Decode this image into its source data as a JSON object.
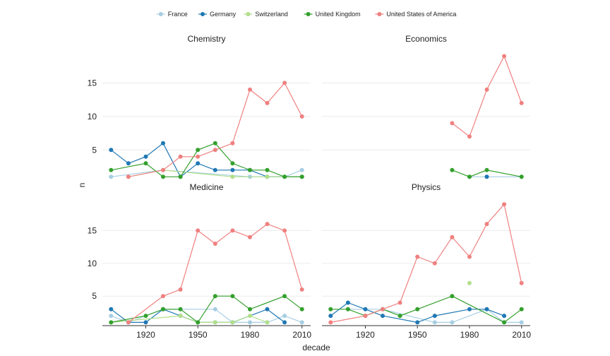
{
  "chart_data": {
    "type": "line",
    "xlabel": "decade",
    "ylabel": "n",
    "x_ticks": [
      1920,
      1950,
      1980,
      2010
    ],
    "y_ticks": [
      5,
      10,
      15
    ],
    "xlim": [
      1895,
      2015
    ],
    "ylim": [
      0,
      20
    ],
    "grid": "horizontal",
    "legend": "top-center",
    "legend_entries": [
      {
        "name": "France",
        "color": "#a6cee3"
      },
      {
        "name": "Germany",
        "color": "#1f78b4"
      },
      {
        "name": "Switzerland",
        "color": "#b2df8a"
      },
      {
        "name": "United Kingdom",
        "color": "#33a02c"
      },
      {
        "name": "United States of America",
        "color": "#f08080"
      }
    ],
    "facets": [
      {
        "title": "Chemistry",
        "series": [
          {
            "name": "France",
            "points": [
              [
                1900,
                1
              ],
              [
                1930,
                2
              ],
              [
                1980,
                1
              ],
              [
                1990,
                1
              ],
              [
                2000,
                1
              ],
              [
                2010,
                2
              ]
            ]
          },
          {
            "name": "Germany",
            "points": [
              [
                1900,
                5
              ],
              [
                1910,
                3
              ],
              [
                1920,
                4
              ],
              [
                1930,
                6
              ],
              [
                1940,
                1
              ],
              [
                1950,
                3
              ],
              [
                1960,
                2
              ],
              [
                1970,
                2
              ],
              [
                1980,
                2
              ],
              [
                1990,
                1
              ],
              [
                2000,
                1
              ],
              [
                2010,
                1
              ]
            ]
          },
          {
            "name": "Switzerland",
            "points": [
              [
                1910,
                1
              ],
              [
                1930,
                2
              ],
              [
                1970,
                1
              ],
              [
                1990,
                1
              ],
              [
                2000,
                1
              ],
              [
                2010,
                1
              ]
            ]
          },
          {
            "name": "United Kingdom",
            "points": [
              [
                1900,
                2
              ],
              [
                1920,
                3
              ],
              [
                1930,
                1
              ],
              [
                1940,
                1
              ],
              [
                1950,
                5
              ],
              [
                1960,
                6
              ],
              [
                1970,
                3
              ],
              [
                1980,
                2
              ],
              [
                1990,
                2
              ],
              [
                2000,
                1
              ],
              [
                2010,
                1
              ]
            ]
          },
          {
            "name": "United States of America",
            "points": [
              [
                1910,
                1
              ],
              [
                1930,
                2
              ],
              [
                1940,
                4
              ],
              [
                1950,
                4
              ],
              [
                1960,
                5
              ],
              [
                1970,
                6
              ],
              [
                1980,
                14
              ],
              [
                1990,
                12
              ],
              [
                2000,
                15
              ],
              [
                2010,
                10
              ]
            ]
          }
        ]
      },
      {
        "title": "Economics",
        "series": [
          {
            "name": "France",
            "points": [
              [
                1980,
                1
              ],
              [
                1990,
                1
              ],
              [
                2010,
                1
              ]
            ]
          },
          {
            "name": "Germany",
            "points": [
              [
                1990,
                1
              ]
            ]
          },
          {
            "name": "United Kingdom",
            "points": [
              [
                1970,
                2
              ],
              [
                1980,
                1
              ],
              [
                1990,
                2
              ],
              [
                2010,
                1
              ]
            ]
          },
          {
            "name": "United States of America",
            "points": [
              [
                1970,
                9
              ],
              [
                1980,
                7
              ],
              [
                1990,
                14
              ],
              [
                2000,
                19
              ],
              [
                2010,
                12
              ]
            ]
          }
        ]
      },
      {
        "title": "Medicine",
        "series": [
          {
            "name": "France",
            "points": [
              [
                1900,
                2
              ],
              [
                1910,
                1
              ],
              [
                1930,
                3
              ],
              [
                1960,
                3
              ],
              [
                1970,
                1
              ],
              [
                1980,
                1
              ],
              [
                1990,
                1
              ],
              [
                2000,
                2
              ],
              [
                2010,
                1
              ]
            ]
          },
          {
            "name": "Germany",
            "points": [
              [
                1900,
                3
              ],
              [
                1910,
                1
              ],
              [
                1920,
                1
              ],
              [
                1930,
                3
              ],
              [
                1940,
                2
              ],
              [
                1950,
                1
              ],
              [
                1960,
                1
              ],
              [
                1970,
                1
              ],
              [
                1990,
                3
              ],
              [
                2000,
                1
              ]
            ]
          },
          {
            "name": "Switzerland",
            "points": [
              [
                1900,
                1
              ],
              [
                1940,
                2
              ],
              [
                1950,
                1
              ],
              [
                1960,
                1
              ],
              [
                1970,
                1
              ],
              [
                1980,
                2
              ],
              [
                1990,
                1
              ]
            ]
          },
          {
            "name": "United Kingdom",
            "points": [
              [
                1900,
                1
              ],
              [
                1920,
                2
              ],
              [
                1930,
                3
              ],
              [
                1940,
                3
              ],
              [
                1950,
                1
              ],
              [
                1960,
                5
              ],
              [
                1970,
                5
              ],
              [
                1980,
                3
              ],
              [
                2000,
                5
              ],
              [
                2010,
                3
              ]
            ]
          },
          {
            "name": "United States of America",
            "points": [
              [
                1910,
                1
              ],
              [
                1930,
                5
              ],
              [
                1940,
                6
              ],
              [
                1950,
                15
              ],
              [
                1960,
                13
              ],
              [
                1970,
                15
              ],
              [
                1980,
                14
              ],
              [
                1990,
                16
              ],
              [
                2000,
                15
              ],
              [
                2010,
                6
              ]
            ]
          }
        ]
      },
      {
        "title": "Physics",
        "series": [
          {
            "name": "France",
            "points": [
              [
                1910,
                3
              ],
              [
                1930,
                3
              ],
              [
                1960,
                1
              ],
              [
                1970,
                1
              ],
              [
                1990,
                3
              ],
              [
                2000,
                1
              ],
              [
                2010,
                1
              ]
            ]
          },
          {
            "name": "Germany",
            "points": [
              [
                1900,
                2
              ],
              [
                1910,
                4
              ],
              [
                1920,
                3
              ],
              [
                1930,
                2
              ],
              [
                1950,
                1
              ],
              [
                1960,
                2
              ],
              [
                1980,
                3
              ],
              [
                1990,
                3
              ],
              [
                2000,
                2
              ]
            ]
          },
          {
            "name": "Switzerland",
            "points": [
              [
                1980,
                7
              ]
            ]
          },
          {
            "name": "United Kingdom",
            "points": [
              [
                1900,
                3
              ],
              [
                1910,
                3
              ],
              [
                1920,
                2
              ],
              [
                1930,
                3
              ],
              [
                1940,
                2
              ],
              [
                1950,
                3
              ],
              [
                1970,
                5
              ],
              [
                2000,
                1
              ],
              [
                2010,
                3
              ]
            ]
          },
          {
            "name": "United States of America",
            "points": [
              [
                1900,
                1
              ],
              [
                1920,
                2
              ],
              [
                1930,
                3
              ],
              [
                1940,
                4
              ],
              [
                1950,
                11
              ],
              [
                1960,
                10
              ],
              [
                1970,
                14
              ],
              [
                1980,
                11
              ],
              [
                1990,
                16
              ],
              [
                2000,
                19
              ],
              [
                2010,
                7
              ]
            ]
          }
        ]
      }
    ]
  }
}
